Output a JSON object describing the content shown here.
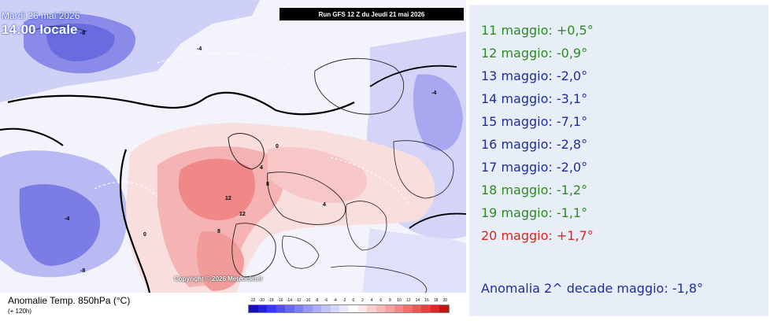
{
  "map": {
    "date_label": "Mardi 26 mai 2026",
    "time_label": "14:00 locale",
    "run_label": "Run GFS 12 Z du Jeudi 21 mai 2026",
    "copyright": "Copyright © 2026 Meteociel.fr",
    "caption": "Anomalie Temp. 850hPa (°C)",
    "subcaption": "(+ 120h)",
    "contour_labels": [
      "-8",
      "-4",
      "0",
      "4",
      "8",
      "12",
      "12",
      "8",
      "4",
      "-4",
      "-8",
      "-4",
      "0"
    ],
    "scale_ticks": [
      "-22",
      "-20",
      "-18",
      "-16",
      "-14",
      "-12",
      "-10",
      "-8",
      "-6",
      "-4",
      "-2",
      "0",
      "2",
      "4",
      "6",
      "8",
      "10",
      "12",
      "14",
      "16",
      "18",
      "20"
    ],
    "scale_colors": [
      "#1a0fb5",
      "#2323d6",
      "#3a3ae8",
      "#5151f0",
      "#6868f2",
      "#8080f5",
      "#9898f7",
      "#adadf9",
      "#c2c2fb",
      "#d6d6fc",
      "#eaeafd",
      "#ffffff",
      "#fde6e6",
      "#fbcfcf",
      "#f8b8b8",
      "#f6a0a0",
      "#f38888",
      "#f07070",
      "#ec5858",
      "#e44040",
      "#d92828",
      "#c51414"
    ]
  },
  "anomalies": [
    {
      "text": "11 maggio: +0,5°",
      "color": "#2e8b1e"
    },
    {
      "text": "12 maggio: -0,9°",
      "color": "#2e8b1e"
    },
    {
      "text": "13 maggio: -2,0°",
      "color": "#1f2d9e"
    },
    {
      "text": "14 maggio: -3,1°",
      "color": "#1f2d9e"
    },
    {
      "text": "15 maggio: -7,1°",
      "color": "#1f2d9e"
    },
    {
      "text": "16 maggio: -2,8°",
      "color": "#1f2d9e"
    },
    {
      "text": "17 maggio: -2,0°",
      "color": "#1f2d9e"
    },
    {
      "text": "18 maggio: -1,2°",
      "color": "#2e8b1e"
    },
    {
      "text": "19 maggio: -1,1°",
      "color": "#2e8b1e"
    },
    {
      "text": "20 maggio: +1,7°",
      "color": "#d42a1c"
    }
  ],
  "summary": "Anomalia 2^ decade maggio: -1,8°"
}
